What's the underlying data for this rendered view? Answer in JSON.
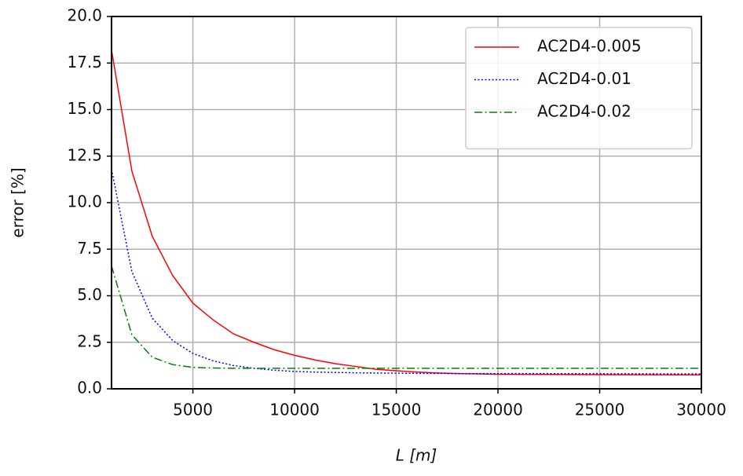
{
  "chart_data": {
    "type": "line",
    "xlabel": "L [m]",
    "ylabel": "error [%]",
    "x": [
      1000,
      2000,
      3000,
      4000,
      5000,
      6000,
      7000,
      8000,
      9000,
      10000,
      11000,
      12000,
      13000,
      14000,
      15000,
      16000,
      17000,
      18000,
      19000,
      20000,
      25000,
      30000
    ],
    "series": [
      {
        "name": "AC2D4-0.005",
        "color": "#ff0000",
        "dash": "solid",
        "values": [
          18.2,
          11.7,
          8.2,
          6.1,
          4.6,
          3.7,
          2.95,
          2.5,
          2.1,
          1.8,
          1.55,
          1.35,
          1.2,
          1.05,
          0.97,
          0.9,
          0.85,
          0.82,
          0.8,
          0.78,
          0.76,
          0.75
        ]
      },
      {
        "name": "AC2D4-0.01",
        "color": "#0000ff",
        "dash": "dotted",
        "values": [
          11.8,
          6.3,
          3.8,
          2.6,
          1.9,
          1.5,
          1.25,
          1.1,
          1.0,
          0.93,
          0.9,
          0.88,
          0.86,
          0.85,
          0.84,
          0.83,
          0.83,
          0.82,
          0.82,
          0.82,
          0.81,
          0.8
        ]
      },
      {
        "name": "AC2D4-0.02",
        "color": "#008000",
        "dash": "dashdot",
        "values": [
          6.6,
          2.9,
          1.7,
          1.3,
          1.15,
          1.12,
          1.1,
          1.1,
          1.1,
          1.1,
          1.1,
          1.1,
          1.1,
          1.1,
          1.1,
          1.1,
          1.1,
          1.1,
          1.1,
          1.1,
          1.1,
          1.1
        ]
      }
    ],
    "xlim": [
      1000,
      30000
    ],
    "ylim": [
      0,
      20
    ],
    "xticks": [
      5000,
      10000,
      15000,
      20000,
      25000,
      30000
    ],
    "yticks": [
      {
        "value": 0,
        "label": "0.0"
      },
      2.5,
      {
        "value": 5,
        "label": "5.0"
      },
      7.5,
      {
        "value": 10,
        "label": "10.0"
      },
      12.5,
      {
        "value": 15,
        "label": "15.0"
      },
      17.5,
      {
        "value": 20,
        "label": "20.0"
      }
    ],
    "grid": true,
    "legend": "upper right"
  }
}
